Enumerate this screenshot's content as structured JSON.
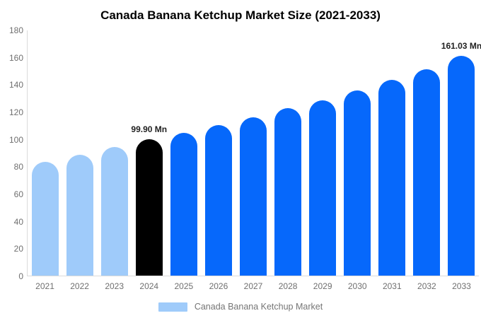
{
  "chart_data": {
    "type": "bar",
    "title": "Canada Banana Ketchup Market Size (2021-2033)",
    "categories": [
      "2021",
      "2022",
      "2023",
      "2024",
      "2025",
      "2026",
      "2027",
      "2028",
      "2029",
      "2030",
      "2031",
      "2032",
      "2033"
    ],
    "series": [
      {
        "name": "Canada Banana Ketchup Market",
        "values": [
          83.5,
          88.6,
          94.0,
          99.9,
          104.7,
          110.2,
          115.8,
          122.4,
          128.4,
          135.6,
          143.4,
          151.2,
          161.03
        ]
      }
    ],
    "ylim": [
      0,
      180
    ],
    "yticks": [
      0,
      20,
      40,
      60,
      80,
      100,
      120,
      140,
      160,
      180
    ],
    "grid": false,
    "legend_position": "bottom",
    "bar_colors": [
      "#9FCBFA",
      "#9FCBFA",
      "#9FCBFA",
      "#000000",
      "#0668FB",
      "#0668FB",
      "#0668FB",
      "#0668FB",
      "#0668FB",
      "#0668FB",
      "#0668FB",
      "#0668FB",
      "#0668FB"
    ],
    "annotations": [
      {
        "category": "2024",
        "text": "99.90 Mn"
      },
      {
        "category": "2033",
        "text": "161.03 Mn"
      }
    ]
  },
  "legend": {
    "label": "Canada Banana Ketchup Market",
    "swatch_color": "#9FCBFA"
  },
  "colors": {
    "historical_bar": "#9FCBFA",
    "base_year_bar": "#000000",
    "forecast_bar": "#0668FB",
    "axis_line": "#DBDBDB",
    "tick_text": "#6F6F6F",
    "legend_text": "#757575",
    "value_label_text": "#1F1F1F",
    "title_text": "#000000"
  }
}
